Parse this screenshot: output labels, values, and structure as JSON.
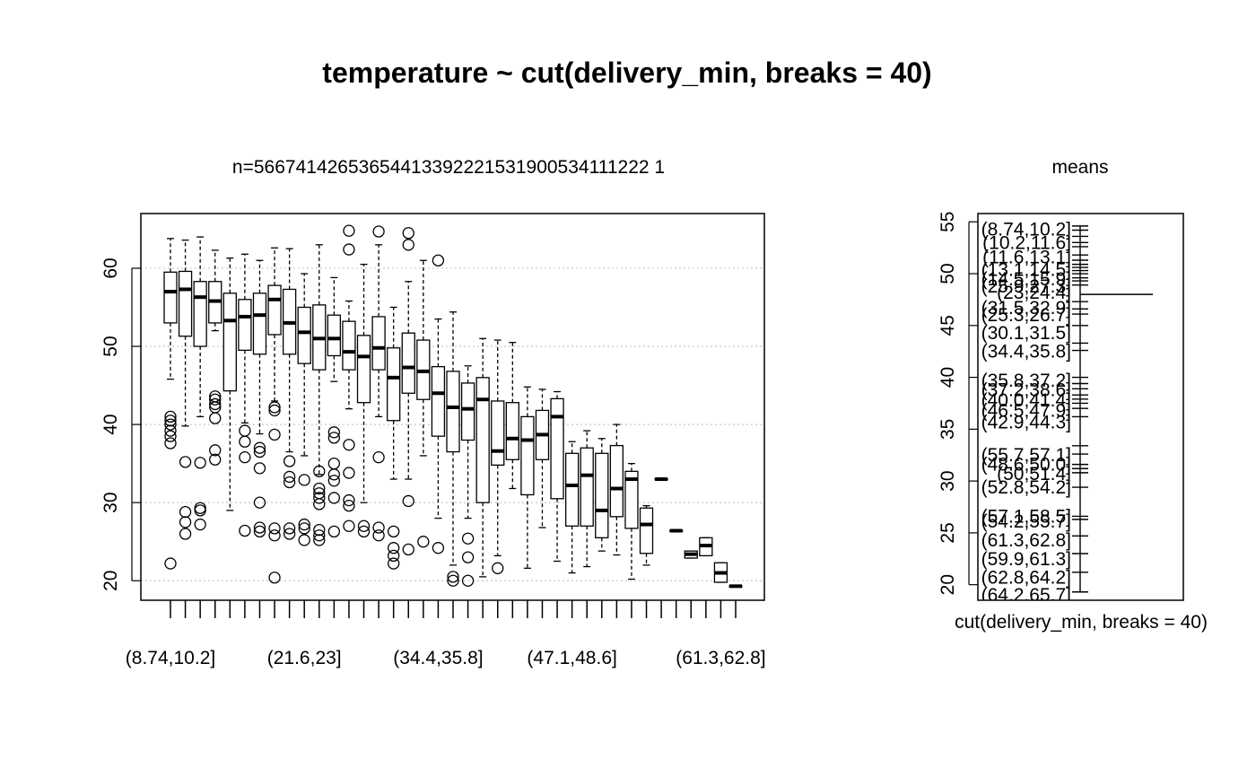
{
  "chart_data": [
    {
      "type": "boxplot",
      "title": "temperature ~ cut(delivery_min, breaks = 40)",
      "ylim": [
        17.5,
        67.0
      ],
      "y_ticks": [
        "20",
        "30",
        "40",
        "50",
        "60"
      ],
      "grid": "horizontal dotted",
      "top_annotation": "n=56674142653654413392221531900534111222 1",
      "x_tick_labels": [
        "(8.74,10.2]",
        "(21.6,23]",
        "(34.4,35.8]",
        "(47.1,48.6]",
        "(61.3,62.8]"
      ],
      "x_tick_label_positions": [
        1,
        10,
        19,
        28,
        38
      ],
      "boxes": [
        {
          "low": 45.8,
          "q1": 53.0,
          "med": 57.0,
          "q3": 59.5,
          "high": 63.8,
          "out": [
            22.2,
            37.6,
            38.5,
            39.2,
            40.0,
            40.5,
            41.0
          ]
        },
        {
          "low": 39.8,
          "q1": 51.3,
          "med": 57.3,
          "q3": 59.6,
          "high": 63.6,
          "out": [
            26.0,
            27.5,
            28.8,
            35.2
          ]
        },
        {
          "low": 41.0,
          "q1": 50.0,
          "med": 56.3,
          "q3": 58.3,
          "high": 64.0,
          "out": [
            27.2,
            29.0,
            29.3,
            35.1
          ]
        },
        {
          "low": 52.0,
          "q1": 53.0,
          "med": 55.8,
          "q3": 58.3,
          "high": 62.3,
          "out": [
            35.5,
            36.7,
            40.8,
            42.2,
            42.6,
            43.2,
            43.6
          ]
        },
        {
          "low": 29.0,
          "q1": 44.3,
          "med": 53.3,
          "q3": 56.8,
          "high": 61.3,
          "out": []
        },
        {
          "low": 40.2,
          "q1": 49.5,
          "med": 53.8,
          "q3": 56.0,
          "high": 61.8,
          "out": [
            26.4,
            35.8,
            37.8,
            39.2
          ]
        },
        {
          "low": 38.8,
          "q1": 49.0,
          "med": 54.0,
          "q3": 56.8,
          "high": 61.0,
          "out": [
            26.3,
            26.8,
            30.0,
            34.4,
            36.5,
            37.0
          ]
        },
        {
          "low": 43.0,
          "q1": 51.5,
          "med": 56.0,
          "q3": 57.8,
          "high": 62.6,
          "out": [
            20.4,
            25.8,
            26.7,
            38.7,
            41.8,
            42.2
          ]
        },
        {
          "low": 36.5,
          "q1": 49.0,
          "med": 53.0,
          "q3": 57.3,
          "high": 62.5,
          "out": [
            26.0,
            26.7,
            32.6,
            33.3,
            35.3
          ]
        },
        {
          "low": 36.0,
          "q1": 47.8,
          "med": 51.8,
          "q3": 55.0,
          "high": 59.3,
          "out": [
            25.2,
            26.7,
            27.2,
            32.9
          ]
        },
        {
          "low": 33.6,
          "q1": 47.0,
          "med": 51.0,
          "q3": 55.3,
          "high": 63.0,
          "out": [
            25.2,
            25.8,
            26.5,
            29.8,
            30.6,
            31.2,
            31.8,
            34.0
          ]
        },
        {
          "low": 45.5,
          "q1": 48.8,
          "med": 51.0,
          "q3": 54.0,
          "high": 58.8,
          "out": [
            26.3,
            30.6,
            32.8,
            33.6,
            35.0,
            38.3,
            39.0
          ]
        },
        {
          "low": 42.0,
          "q1": 47.0,
          "med": 49.3,
          "q3": 53.2,
          "high": 55.8,
          "out": [
            27.0,
            29.6,
            30.3,
            33.8,
            37.4,
            62.4,
            64.8
          ]
        },
        {
          "low": 30.0,
          "q1": 42.8,
          "med": 48.7,
          "q3": 51.4,
          "high": 60.5,
          "out": [
            26.3,
            27.0
          ]
        },
        {
          "low": 41.0,
          "q1": 47.0,
          "med": 49.8,
          "q3": 53.8,
          "high": 63.0,
          "out": [
            25.8,
            26.8,
            35.8,
            64.7
          ]
        },
        {
          "low": 33.0,
          "q1": 40.5,
          "med": 46.0,
          "q3": 49.8,
          "high": 55.0,
          "out": [
            22.2,
            23.2,
            24.2,
            26.3
          ]
        },
        {
          "low": 33.0,
          "q1": 44.0,
          "med": 47.3,
          "q3": 51.7,
          "high": 58.3,
          "out": [
            24.0,
            30.2,
            63.0,
            64.5
          ]
        },
        {
          "low": 36.0,
          "q1": 43.2,
          "med": 46.8,
          "q3": 50.8,
          "high": 61.0,
          "out": [
            25.0
          ]
        },
        {
          "low": 28.0,
          "q1": 38.5,
          "med": 44.0,
          "q3": 47.4,
          "high": 53.5,
          "out": [
            24.2,
            61.0
          ]
        },
        {
          "low": 22.0,
          "q1": 36.5,
          "med": 42.2,
          "q3": 46.8,
          "high": 54.4,
          "out": [
            20.0,
            20.5
          ]
        },
        {
          "low": 28.0,
          "q1": 38.0,
          "med": 42.0,
          "q3": 45.3,
          "high": 47.5,
          "out": [
            20.0,
            23.0,
            25.4
          ]
        },
        {
          "low": 20.5,
          "q1": 30.0,
          "med": 43.2,
          "q3": 46.0,
          "high": 51.0,
          "out": []
        },
        {
          "low": 23.2,
          "q1": 34.8,
          "med": 36.6,
          "q3": 43.0,
          "high": 50.8,
          "out": [
            21.6
          ]
        },
        {
          "low": 31.8,
          "q1": 35.5,
          "med": 38.2,
          "q3": 42.8,
          "high": 50.5,
          "out": []
        },
        {
          "low": 21.6,
          "q1": 31.0,
          "med": 38.0,
          "q3": 41.0,
          "high": 44.8,
          "out": []
        },
        {
          "low": 26.8,
          "q1": 35.5,
          "med": 38.7,
          "q3": 41.8,
          "high": 44.5,
          "out": []
        },
        {
          "low": 22.5,
          "q1": 30.5,
          "med": 41.0,
          "q3": 43.3,
          "high": 44.2,
          "out": []
        },
        {
          "low": 21.0,
          "q1": 27.0,
          "med": 32.2,
          "q3": 36.3,
          "high": 37.8,
          "out": []
        },
        {
          "low": 21.8,
          "q1": 27.0,
          "med": 33.5,
          "q3": 37.0,
          "high": 39.2,
          "out": []
        },
        {
          "low": 23.8,
          "q1": 25.5,
          "med": 29.0,
          "q3": 36.3,
          "high": 38.2,
          "out": []
        },
        {
          "low": 23.3,
          "q1": 28.2,
          "med": 31.8,
          "q3": 37.3,
          "high": 40.0,
          "out": []
        },
        {
          "low": 20.2,
          "q1": 26.7,
          "med": 33.0,
          "q3": 34.0,
          "high": 35.0,
          "out": []
        },
        {
          "low": 22.0,
          "q1": 23.5,
          "med": 27.2,
          "q3": 29.3,
          "high": 29.6,
          "out": []
        },
        {
          "low": 33.0,
          "q1": 33.0,
          "med": 33.0,
          "q3": 33.0,
          "high": 33.0,
          "out": []
        },
        {
          "low": 26.4,
          "q1": 26.4,
          "med": 26.4,
          "q3": 26.4,
          "high": 26.4,
          "out": []
        },
        {
          "low": 22.9,
          "q1": 22.9,
          "med": 23.4,
          "q3": 23.8,
          "high": 23.8,
          "out": []
        },
        {
          "low": 23.2,
          "q1": 23.2,
          "med": 24.5,
          "q3": 25.5,
          "high": 25.5,
          "out": []
        },
        {
          "low": 19.8,
          "q1": 19.8,
          "med": 21.0,
          "q3": 22.3,
          "high": 22.3,
          "out": []
        },
        {
          "low": 19.3,
          "q1": 19.3,
          "med": 19.3,
          "q3": 19.3,
          "high": 19.3,
          "out": []
        }
      ]
    },
    {
      "type": "means",
      "title": "means",
      "xlabel": "cut(delivery_min, breaks = 40)",
      "ylim": [
        18.5,
        55.8
      ],
      "y_ticks": [
        "20",
        "25",
        "30",
        "35",
        "40",
        "45",
        "50",
        "55"
      ],
      "mean_line": 48.0,
      "labels": [
        {
          "y": 54.3,
          "text": "(8.74,10.2]"
        },
        {
          "y": 53.0,
          "text": "(10.2,11.6]"
        },
        {
          "y": 51.6,
          "text": "(11.6,13.1]"
        },
        {
          "y": 50.4,
          "text": "(13.1,14.5]"
        },
        {
          "y": 49.5,
          "text": "(14.5,15.9]"
        },
        {
          "y": 48.8,
          "text": "(25.9,27.3]"
        },
        {
          "y": 48.2,
          "text": "(23,24.4]"
        },
        {
          "y": 46.7,
          "text": "(31.5,32.9]"
        },
        {
          "y": 46.0,
          "text": "(25.3,26.7]"
        },
        {
          "y": 44.3,
          "text": "(30.1,31.5]"
        },
        {
          "y": 42.5,
          "text": "(34.4,35.8]"
        },
        {
          "y": 39.7,
          "text": "(35.8,37.2]"
        },
        {
          "y": 38.8,
          "text": "(37.2,38.6]"
        },
        {
          "y": 37.8,
          "text": "(40.0,41.4]"
        },
        {
          "y": 36.8,
          "text": "(46.5,47.9]"
        },
        {
          "y": 35.7,
          "text": "(42.9,44.3]"
        },
        {
          "y": 32.5,
          "text": "(55.7,57.1]"
        },
        {
          "y": 31.6,
          "text": "(48.6,50.0]"
        },
        {
          "y": 30.7,
          "text": "(50,51.4]"
        },
        {
          "y": 29.4,
          "text": "(52.8,54.2]"
        },
        {
          "y": 26.6,
          "text": "(57.1,58.5]"
        },
        {
          "y": 26.1,
          "text": "(54.2,55.7]"
        },
        {
          "y": 24.3,
          "text": "(61.3,62.8]"
        },
        {
          "y": 22.5,
          "text": "(59.9,61.3]"
        },
        {
          "y": 20.7,
          "text": "(62.8,64.2]"
        },
        {
          "y": 19.0,
          "text": "(64.2,65.7]"
        }
      ],
      "tick_marks": [
        54.6,
        54.2,
        53.6,
        53.0,
        52.6,
        51.8,
        51.3,
        50.9,
        50.6,
        50.3,
        50.0,
        49.6,
        49.3,
        48.9,
        47.3,
        46.6,
        46.1,
        45.0,
        43.3,
        42.6,
        40.0,
        39.4,
        38.9,
        38.3,
        37.9,
        37.5,
        37.0,
        36.2,
        33.4,
        32.6,
        31.6,
        31.2,
        30.8,
        29.4,
        26.6,
        26.3,
        24.7,
        23.0,
        21.2,
        19.3
      ]
    }
  ]
}
